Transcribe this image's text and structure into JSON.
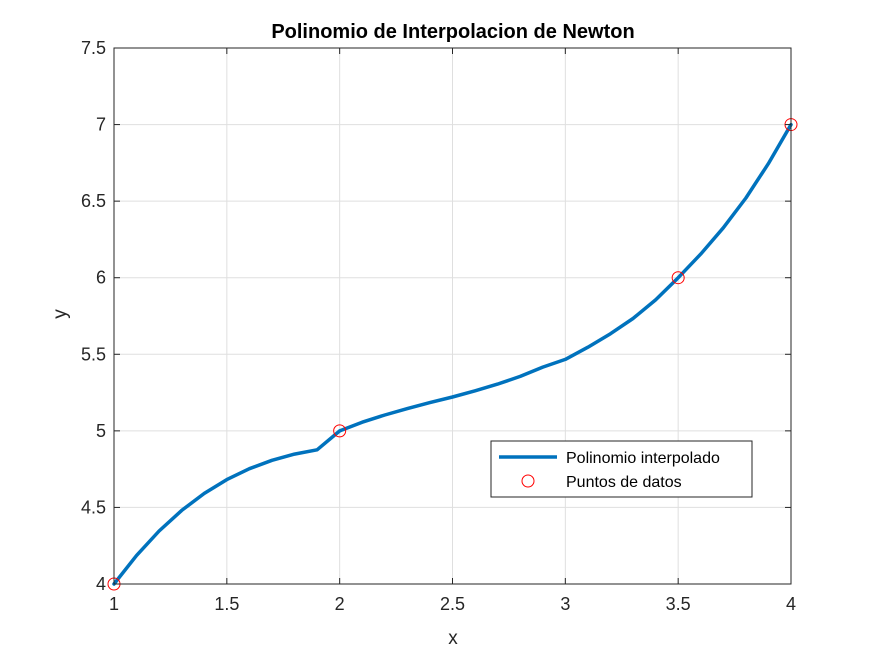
{
  "chart_data": {
    "type": "line",
    "title": "Polinomio de Interpolacion de Newton",
    "xlabel": "x",
    "ylabel": "y",
    "xlim": [
      1,
      4
    ],
    "ylim": [
      4,
      7.5
    ],
    "xticks": [
      "1",
      "1.5",
      "2",
      "2.5",
      "3",
      "3.5",
      "4"
    ],
    "yticks": [
      "4",
      "4.5",
      "5",
      "5.5",
      "6",
      "6.5",
      "7",
      "7.5"
    ],
    "grid": true,
    "legend_position": "lower-right",
    "series": [
      {
        "name": "Polinomio interpolado",
        "kind": "line",
        "color": "#0072BD",
        "x": [
          1.0,
          1.1,
          1.2,
          1.3,
          1.4,
          1.5,
          1.6,
          1.7,
          1.8,
          1.9,
          2.0,
          2.1,
          2.2,
          2.3,
          2.4,
          2.5,
          2.6,
          2.7,
          2.8,
          2.9,
          3.0,
          3.1,
          3.2,
          3.3,
          3.4,
          3.5,
          3.6,
          3.7,
          3.8,
          3.9,
          4.0
        ],
        "y": [
          4.0,
          4.1868,
          4.3463,
          4.4805,
          4.5916,
          4.6818,
          4.7532,
          4.8079,
          4.8482,
          4.8761,
          5.0,
          5.0568,
          5.1037,
          5.1453,
          5.1842,
          5.2208,
          5.2617,
          5.3054,
          5.3557,
          5.416,
          5.4667,
          5.5465,
          5.6346,
          5.7337,
          5.8553,
          6.0,
          6.1543,
          6.3259,
          6.5208,
          6.745,
          7.0
        ]
      },
      {
        "name": "Puntos de datos",
        "kind": "markers",
        "color": "#FF0000",
        "x": [
          1,
          2,
          3.5,
          4
        ],
        "y": [
          4,
          5,
          6,
          7
        ]
      }
    ]
  }
}
